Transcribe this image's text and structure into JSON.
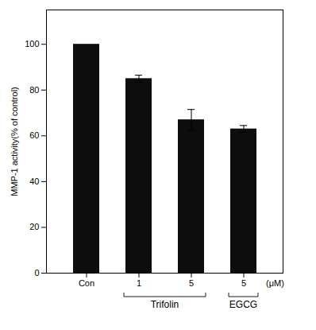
{
  "chart_data": {
    "type": "bar",
    "categories": [
      "Con",
      "1",
      "5",
      "5"
    ],
    "values": [
      100,
      85,
      67,
      63
    ],
    "errors": [
      null,
      1.5,
      4.5,
      1.5
    ],
    "color": "#0d0d0d",
    "ylabel": "MMP-1 activity(% of control)",
    "ylim": [
      0,
      115
    ],
    "yticks": [
      0,
      20,
      40,
      60,
      80,
      100
    ],
    "groups": [
      {
        "name": "Trifolin",
        "positions": [
          1,
          2
        ]
      },
      {
        "name": "EGCG",
        "positions": [
          3
        ]
      }
    ],
    "annotations": [
      "(μM)"
    ]
  }
}
